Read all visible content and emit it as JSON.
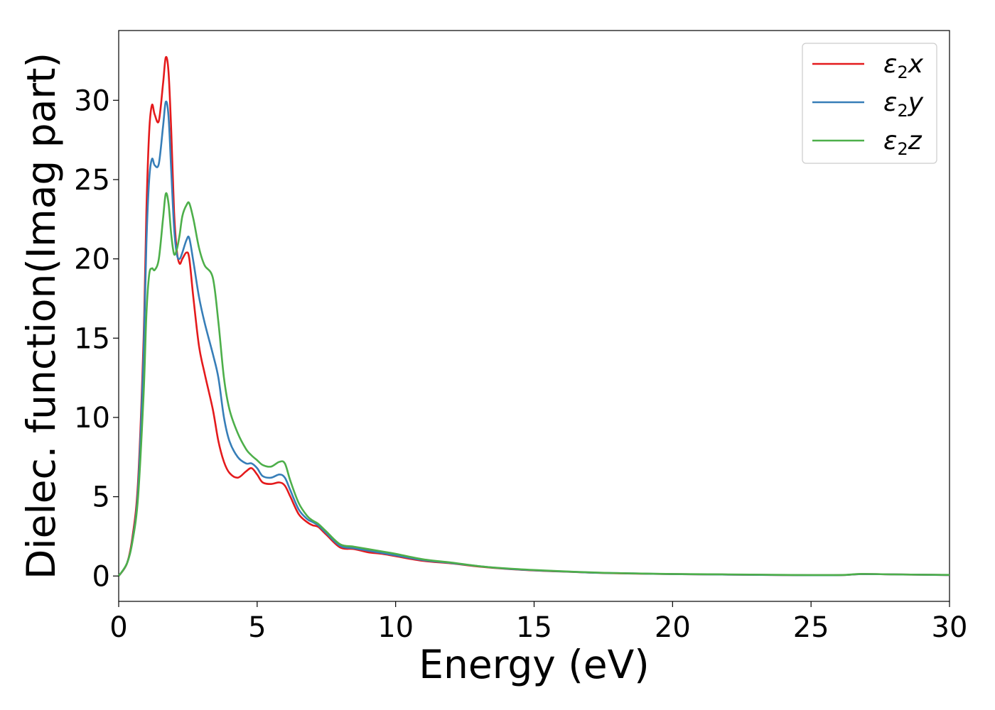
{
  "chart_data": {
    "type": "line",
    "title": "",
    "xlabel": "Energy (eV)",
    "ylabel": "Dielec. function(Imag part)",
    "xlim": [
      0,
      30
    ],
    "ylim": [
      -1.6,
      34.4
    ],
    "xticks": [
      0,
      5,
      10,
      15,
      20,
      25,
      30
    ],
    "yticks": [
      0,
      5,
      10,
      15,
      20,
      25,
      30
    ],
    "grid": false,
    "legend_position": "top-right",
    "series": [
      {
        "name": "ε₂x",
        "legend_main": "ε",
        "legend_sub": "2",
        "legend_tail": "x",
        "color": "#e41a1c",
        "x": [
          0,
          0.3,
          0.5,
          0.7,
          0.9,
          1.0,
          1.1,
          1.2,
          1.3,
          1.45,
          1.6,
          1.7,
          1.8,
          1.9,
          2.0,
          2.1,
          2.2,
          2.3,
          2.45,
          2.55,
          2.7,
          2.9,
          3.1,
          3.4,
          3.6,
          3.8,
          4.0,
          4.3,
          4.6,
          4.8,
          5.0,
          5.2,
          5.5,
          5.8,
          6.0,
          6.2,
          6.5,
          6.8,
          7.0,
          7.2,
          7.5,
          8.0,
          8.5,
          9.0,
          9.5,
          10.0,
          11.0,
          12.0,
          13.0,
          14.0,
          15.0,
          16.0,
          17.0,
          18.0,
          20.0,
          22.0,
          24.0,
          26.0,
          26.8,
          28.0,
          30.0
        ],
        "y": [
          0,
          0.8,
          2.5,
          6.0,
          15.0,
          23.0,
          28.0,
          29.7,
          29.1,
          28.7,
          31.0,
          32.7,
          31.8,
          28.0,
          23.0,
          20.5,
          19.7,
          20.0,
          20.4,
          20.0,
          17.5,
          14.5,
          12.8,
          10.5,
          8.5,
          7.2,
          6.5,
          6.2,
          6.6,
          6.8,
          6.4,
          5.9,
          5.8,
          5.9,
          5.7,
          5.0,
          3.9,
          3.4,
          3.2,
          3.1,
          2.6,
          1.8,
          1.7,
          1.5,
          1.4,
          1.25,
          0.95,
          0.8,
          0.6,
          0.45,
          0.35,
          0.28,
          0.22,
          0.17,
          0.12,
          0.09,
          0.06,
          0.05,
          0.12,
          0.1,
          0.06
        ]
      },
      {
        "name": "ε₂y",
        "legend_main": "ε",
        "legend_sub": "2",
        "legend_tail": "y",
        "color": "#377eb8",
        "x": [
          0,
          0.3,
          0.5,
          0.7,
          0.9,
          1.0,
          1.1,
          1.2,
          1.3,
          1.45,
          1.6,
          1.7,
          1.8,
          1.9,
          2.0,
          2.1,
          2.2,
          2.3,
          2.45,
          2.55,
          2.7,
          2.9,
          3.1,
          3.4,
          3.6,
          3.8,
          4.0,
          4.3,
          4.6,
          4.8,
          5.0,
          5.2,
          5.5,
          5.8,
          6.0,
          6.2,
          6.5,
          6.8,
          7.0,
          7.2,
          7.5,
          8.0,
          8.5,
          9.0,
          9.5,
          10.0,
          11.0,
          12.0,
          13.0,
          14.0,
          15.0,
          16.0,
          17.0,
          18.0,
          20.0,
          22.0,
          24.0,
          26.0,
          26.8,
          28.0,
          30.0
        ],
        "y": [
          0,
          0.8,
          2.3,
          5.5,
          14.0,
          21.0,
          25.0,
          26.3,
          25.9,
          26.0,
          28.3,
          29.9,
          29.0,
          25.5,
          22.0,
          20.3,
          20.0,
          20.4,
          21.2,
          21.3,
          19.8,
          17.6,
          16.0,
          14.0,
          12.5,
          10.0,
          8.5,
          7.5,
          7.1,
          7.1,
          6.8,
          6.3,
          6.2,
          6.4,
          6.2,
          5.4,
          4.2,
          3.6,
          3.4,
          3.2,
          2.7,
          1.9,
          1.75,
          1.6,
          1.45,
          1.3,
          1.0,
          0.82,
          0.62,
          0.46,
          0.36,
          0.29,
          0.22,
          0.18,
          0.12,
          0.09,
          0.06,
          0.05,
          0.12,
          0.1,
          0.06
        ]
      },
      {
        "name": "ε₂z",
        "legend_main": "ε",
        "legend_sub": "2",
        "legend_tail": "z",
        "color": "#4daf4a",
        "x": [
          0,
          0.3,
          0.5,
          0.7,
          0.9,
          1.0,
          1.1,
          1.2,
          1.3,
          1.45,
          1.6,
          1.7,
          1.8,
          1.9,
          2.0,
          2.1,
          2.2,
          2.3,
          2.45,
          2.55,
          2.7,
          2.9,
          3.1,
          3.4,
          3.6,
          3.8,
          4.0,
          4.3,
          4.6,
          4.8,
          5.0,
          5.2,
          5.5,
          5.8,
          6.0,
          6.2,
          6.5,
          6.8,
          7.0,
          7.2,
          7.5,
          8.0,
          8.5,
          9.0,
          9.5,
          10.0,
          11.0,
          12.0,
          13.0,
          14.0,
          15.0,
          16.0,
          17.0,
          18.0,
          20.0,
          22.0,
          24.0,
          26.0,
          26.8,
          28.0,
          30.0
        ],
        "y": [
          0,
          0.8,
          2.2,
          5.0,
          11.5,
          16.5,
          19.0,
          19.4,
          19.3,
          20.0,
          22.5,
          24.1,
          23.5,
          21.5,
          20.3,
          20.6,
          21.5,
          22.7,
          23.4,
          23.5,
          22.5,
          20.7,
          19.6,
          18.8,
          16.0,
          12.5,
          10.5,
          9.0,
          8.0,
          7.6,
          7.3,
          7.0,
          6.9,
          7.2,
          7.1,
          6.0,
          4.6,
          3.8,
          3.5,
          3.3,
          2.8,
          2.0,
          1.85,
          1.7,
          1.55,
          1.4,
          1.05,
          0.85,
          0.62,
          0.48,
          0.38,
          0.3,
          0.23,
          0.18,
          0.13,
          0.1,
          0.07,
          0.06,
          0.13,
          0.1,
          0.07
        ]
      }
    ]
  }
}
